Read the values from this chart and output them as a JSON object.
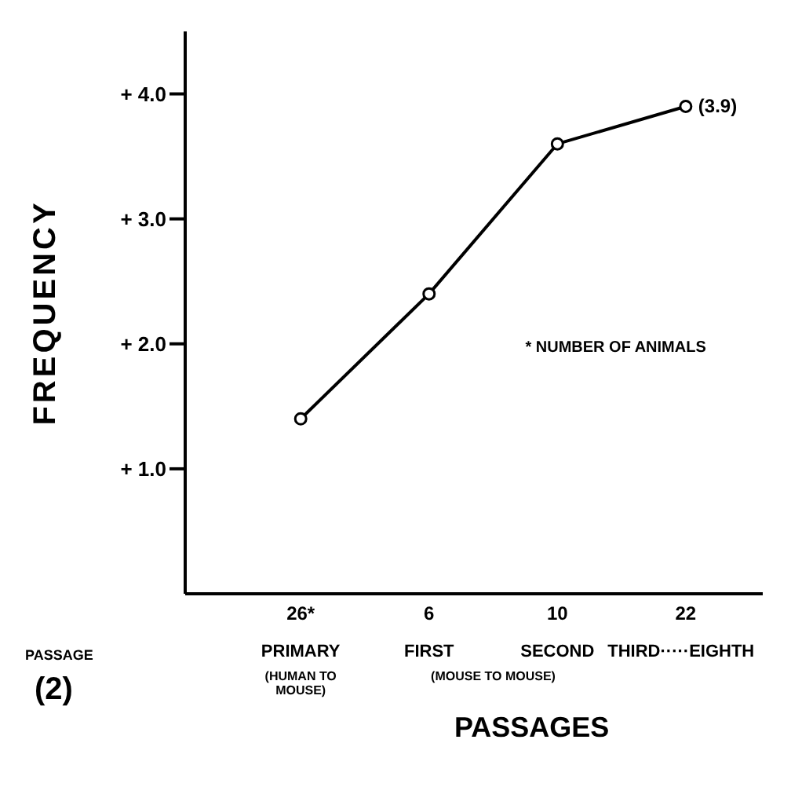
{
  "chart_data": {
    "type": "line",
    "xlabel": "PASSAGES",
    "ylabel": "FREQUENCY",
    "categories": [
      "26*",
      "6",
      "10",
      "22"
    ],
    "series": [
      {
        "color": "#000000",
        "values": [
          1.4,
          2.4,
          3.6,
          3.9
        ],
        "value_labels": [
          null,
          null,
          null,
          "(3.9)"
        ]
      }
    ],
    "ylim": [
      0,
      4.5
    ],
    "yticks": [
      {
        "value": 1,
        "label": "+ 1.0"
      },
      {
        "value": 2,
        "label": "+ 2.0"
      },
      {
        "value": 3,
        "label": "+ 3.0"
      },
      {
        "value": 4,
        "label": "+ 4.0"
      }
    ],
    "annotations": [
      "* NUMBER OF ANIMALS",
      "PASSAGE",
      "(2)",
      "PRIMARY",
      "FIRST",
      "SECOND",
      "THIRD·····EIGHTH",
      "(HUMAN TO MOUSE)",
      "(MOUSE TO MOUSE)"
    ],
    "marker": "circle",
    "line_style": "solid"
  }
}
